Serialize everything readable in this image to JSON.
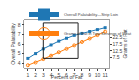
{
  "chart_data": {
    "type": "line",
    "x": [
      1,
      2,
      3,
      4,
      5,
      6,
      7,
      8,
      9,
      10,
      11
    ],
    "xlabel": "Percent of Fat",
    "ylabel": "Overall Palatability",
    "y2label": "Grams of Fat",
    "xlim": [
      0.5,
      11.5
    ],
    "xticks": [
      1,
      2,
      3,
      4,
      5,
      6,
      7,
      8,
      9,
      10,
      11
    ],
    "ylim": [
      3.5,
      8.5
    ],
    "yticks": [
      4,
      5,
      6,
      7,
      8
    ],
    "y2lim": [
      0,
      35
    ],
    "y2ticks": [
      7.5,
      12.5,
      17.5,
      22.5
    ],
    "series": [
      {
        "name": "Overall Palatability—Strip Loin",
        "marker": "square",
        "values": [
          4.5,
          5.0,
          5.5,
          5.9,
          6.3,
          6.6,
          6.9,
          7.1,
          7.3,
          7.5,
          7.7
        ]
      },
      {
        "name": "Grams of Fat in Two Servings of Meat",
        "marker": "circle-open",
        "axis": "y2",
        "values": [
          2.0,
          4.0,
          6.5,
          9.0,
          11.5,
          14.0,
          16.5,
          19.0,
          21.5,
          24.0,
          26.5
        ]
      }
    ],
    "rectangle": {
      "x": [
        3,
        7.5
      ],
      "y": [
        4.5,
        8.2
      ]
    },
    "legend": "upper left",
    "grid": false
  }
}
